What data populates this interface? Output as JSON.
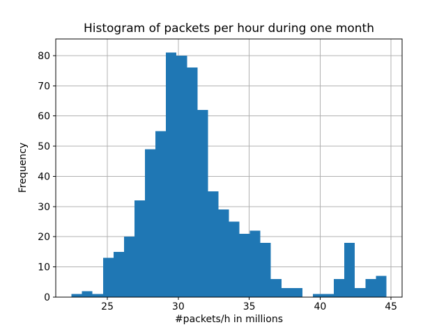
{
  "chart_data": {
    "type": "bar",
    "subtype": "histogram",
    "title": "Histogram of packets per hour during one month",
    "xlabel": "#packets/h in millions",
    "ylabel": "Frequency",
    "bin_edges": [
      22.47,
      23.21,
      23.95,
      24.69,
      25.43,
      26.17,
      26.91,
      27.65,
      28.39,
      29.13,
      29.87,
      30.61,
      31.35,
      32.09,
      32.83,
      33.57,
      34.31,
      35.05,
      35.79,
      36.53,
      37.27,
      38.01,
      38.75,
      39.49,
      40.23,
      40.97,
      41.71,
      42.45,
      43.19,
      43.93,
      44.67
    ],
    "frequencies": [
      1,
      2,
      1,
      13,
      15,
      20,
      32,
      49,
      55,
      81,
      80,
      76,
      62,
      35,
      29,
      25,
      21,
      22,
      18,
      6,
      3,
      3,
      0,
      1,
      1,
      6,
      18,
      3,
      6,
      7
    ],
    "xticks": [
      25,
      30,
      35,
      40,
      45
    ],
    "yticks": [
      0,
      10,
      20,
      30,
      40,
      50,
      60,
      70,
      80
    ],
    "xlim": [
      21.36,
      45.78
    ],
    "ylim": [
      0,
      85.5
    ],
    "grid": true,
    "legend": null,
    "bar_color": "#1f77b4",
    "grid_color": "#b0b0b0",
    "spine_color": "#000000",
    "background_color": "#ffffff"
  }
}
